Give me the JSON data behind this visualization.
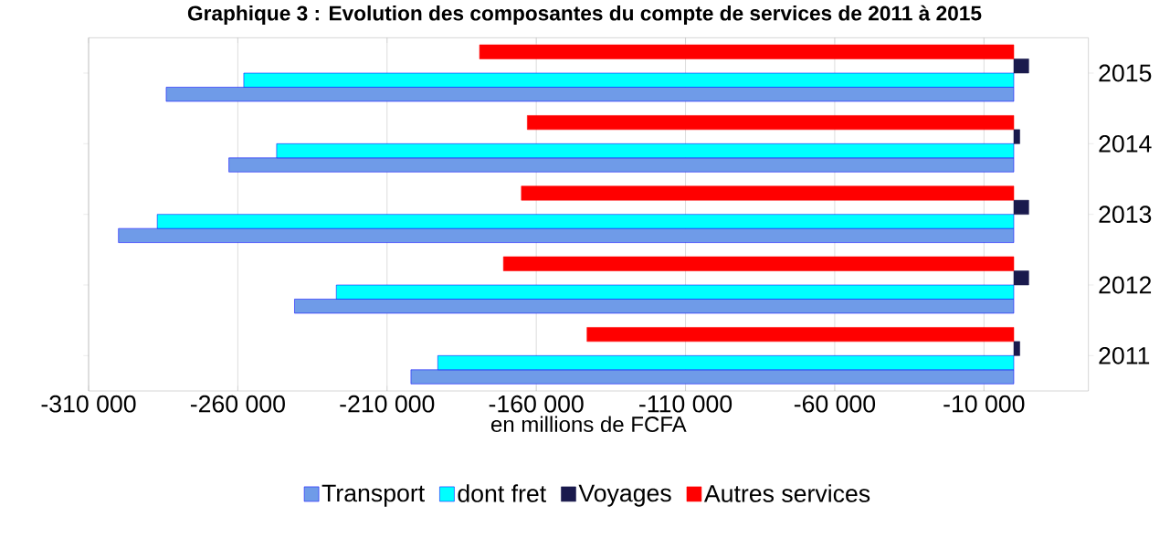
{
  "chart_data": {
    "type": "bar",
    "orientation": "horizontal",
    "title": "Graphique 3 : Evolution des composantes du compte de services de 2011 à 2015",
    "xlabel": "en millions de FCFA",
    "categories": [
      "2015",
      "2014",
      "2013",
      "2012",
      "2011"
    ],
    "series": [
      {
        "name": "Transport",
        "color": "#6f9be8",
        "values": [
          -284000,
          -263000,
          -300000,
          -241000,
          -202000
        ]
      },
      {
        "name": "dont fret",
        "color": "#00ffff",
        "values": [
          -258000,
          -247000,
          -287000,
          -227000,
          -193000
        ]
      },
      {
        "name": "Voyages",
        "color": "#1a1a4d",
        "values": [
          5000,
          2000,
          5000,
          5000,
          2000
        ]
      },
      {
        "name": "Autres services",
        "color": "#ff0000",
        "values": [
          -179000,
          -163000,
          -165000,
          -171000,
          -143000
        ]
      }
    ],
    "xlim": [
      -310000,
      25000
    ],
    "xticks": [
      {
        "value": -310000,
        "label": "-310 000"
      },
      {
        "value": -260000,
        "label": "-260 000"
      },
      {
        "value": -210000,
        "label": "-210 000"
      },
      {
        "value": -160000,
        "label": "-160 000"
      },
      {
        "value": -110000,
        "label": "-110 000"
      },
      {
        "value": -60000,
        "label": "-60 000"
      },
      {
        "value": -10000,
        "label": "-10 000"
      }
    ],
    "grid": "x",
    "legend": "bottom"
  }
}
